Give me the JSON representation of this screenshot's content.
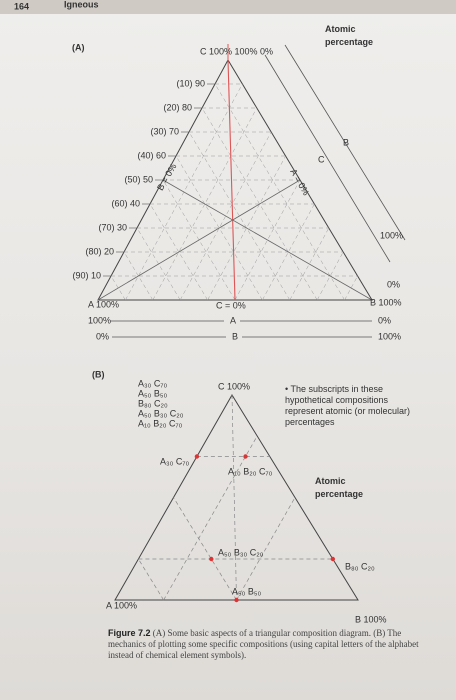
{
  "header": {
    "page_number": "164",
    "running_title": "Igneous"
  },
  "panel_a": {
    "label": "(A)",
    "apex_label": "C 100% 100% 0%",
    "axis_title": "Atomic percentage",
    "edge_labels": [
      "B",
      "C"
    ],
    "line_labels": [
      "A = 0%",
      "B = 0%"
    ],
    "left_scale": [
      "(10) 90",
      "(20) 80",
      "(30) 70",
      "(40) 60",
      "(50) 50",
      "(60) 40",
      "(70) 30",
      "(80) 20",
      "(90) 10"
    ],
    "bottom_left": [
      "A 100%",
      "100%",
      "0%"
    ],
    "bottom_mid": [
      "C = 0%",
      "A",
      "B"
    ],
    "bottom_right": [
      "B 100%",
      "0%",
      "100%"
    ],
    "right_labels": [
      "100%",
      "0%"
    ]
  },
  "panel_b": {
    "label": "(B)",
    "compositions": [
      "A₃₀ C₇₀",
      "A₅₀ B₅₀",
      "B₈₀ C₂₀",
      "A₅₀ B₃₀ C₂₀",
      "A₁₀ B₂₀ C₇₀"
    ],
    "apex_label": "C 100%",
    "note": "The subscripts in these hypothetical compositions represent atomic (or molecular) percentages",
    "axis_title": "Atomic percentage",
    "point_labels": [
      "A₃₀ C₇₀",
      "A₁₀ B₂₀ C₇₀",
      "A₅₀ B₃₀ C₂₀",
      "B₈₀ C₂₀",
      "A₅₀ B₅₀"
    ],
    "base_left": "A 100%",
    "base_right": "B 100%"
  },
  "caption": {
    "label": "Figure 7.2",
    "text": "(A) Some basic aspects of a triangular composition diagram. (B) The mechanics of plotting some specific compositions (using capital letters of the alphabet instead of chemical element symbols)."
  }
}
